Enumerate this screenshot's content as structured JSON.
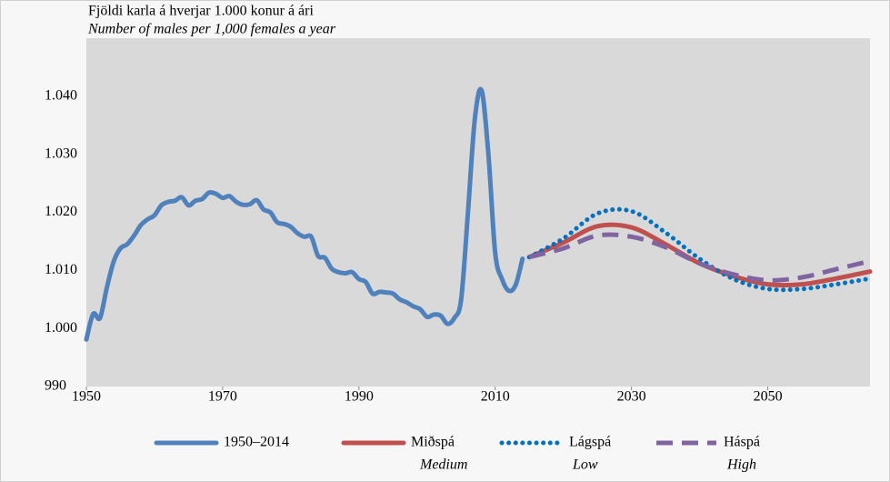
{
  "chart_data": {
    "type": "line",
    "title": "Fjöldi karla á hverjar 1.000 konur á ári",
    "subtitle": "Number of males per 1,000 females a year",
    "xlim": [
      1950,
      2065
    ],
    "xticks": [
      1950,
      1970,
      1990,
      2010,
      2030,
      2050
    ],
    "ylim": [
      990,
      1050
    ],
    "yticks": [
      990,
      {
        "value": 1000,
        "label": "1.000"
      },
      {
        "value": 1010,
        "label": "1.010"
      },
      {
        "value": 1020,
        "label": "1.020"
      },
      {
        "value": 1030,
        "label": "1.030"
      },
      {
        "value": 1040,
        "label": "1.040"
      }
    ],
    "grid": false,
    "legend": "bottom",
    "series": [
      {
        "name": "1950–2014",
        "color": "#4f81bd",
        "style": "solid",
        "x": [
          1950,
          1951,
          1952,
          1953,
          1954,
          1955,
          1956,
          1957,
          1958,
          1959,
          1960,
          1961,
          1962,
          1963,
          1964,
          1965,
          1966,
          1967,
          1968,
          1969,
          1970,
          1971,
          1972,
          1973,
          1974,
          1975,
          1976,
          1977,
          1978,
          1979,
          1980,
          1981,
          1982,
          1983,
          1984,
          1985,
          1986,
          1987,
          1988,
          1989,
          1990,
          1991,
          1992,
          1993,
          1994,
          1995,
          1996,
          1997,
          1998,
          1999,
          2000,
          2001,
          2002,
          2003,
          2004,
          2005,
          2006,
          2007,
          2008,
          2009,
          2010,
          2011,
          2012,
          2013,
          2014
        ],
        "values": [
          998.1,
          1002.5,
          1001.8,
          1007,
          1011.5,
          1013.8,
          1014.5,
          1016,
          1017.8,
          1018.8,
          1019.5,
          1021.2,
          1021.8,
          1022,
          1022.6,
          1021.2,
          1022,
          1022.3,
          1023.4,
          1023.2,
          1022.5,
          1022.8,
          1021.8,
          1021.3,
          1021.4,
          1022.1,
          1020.5,
          1020,
          1018.3,
          1018,
          1017.5,
          1016.4,
          1015.8,
          1015.8,
          1012.5,
          1012.2,
          1010.3,
          1009.7,
          1009.5,
          1009.7,
          1008.5,
          1008,
          1006,
          1006.3,
          1006.2,
          1006,
          1005,
          1004.5,
          1003.8,
          1003.3,
          1002,
          1002.4,
          1002.2,
          1000.8,
          1001.8,
          1005,
          1020,
          1036,
          1041,
          1030,
          1013,
          1008.5,
          1006.5,
          1007.5,
          1012
        ]
      },
      {
        "name": "Miðspá",
        "name_en": "Medium",
        "color": "#c0504d",
        "style": "solid",
        "x": [
          2015,
          2020,
          2025,
          2030,
          2035,
          2040,
          2045,
          2050,
          2055,
          2060,
          2065
        ],
        "values": [
          1012.3,
          1014.8,
          1017.6,
          1017.4,
          1014.5,
          1011.2,
          1009,
          1007.6,
          1007.6,
          1008.6,
          1009.8
        ]
      },
      {
        "name": "Lágspá",
        "name_en": "Low",
        "color": "#0070c0",
        "style": "dotted",
        "x": [
          2015,
          2020,
          2025,
          2030,
          2035,
          2040,
          2045,
          2050,
          2055,
          2060,
          2065
        ],
        "values": [
          1012.3,
          1015.5,
          1019.8,
          1020.2,
          1016.5,
          1012,
          1008.5,
          1006.8,
          1006.8,
          1007.6,
          1008.6
        ]
      },
      {
        "name": "Háspá",
        "name_en": "High",
        "color": "#8064a2",
        "style": "dashed",
        "x": [
          2015,
          2020,
          2025,
          2030,
          2035,
          2040,
          2045,
          2050,
          2055,
          2060,
          2065
        ],
        "values": [
          1012.3,
          1013.8,
          1016,
          1015.8,
          1014,
          1011.2,
          1009.3,
          1008.3,
          1008.8,
          1010.2,
          1011.6
        ]
      }
    ]
  }
}
